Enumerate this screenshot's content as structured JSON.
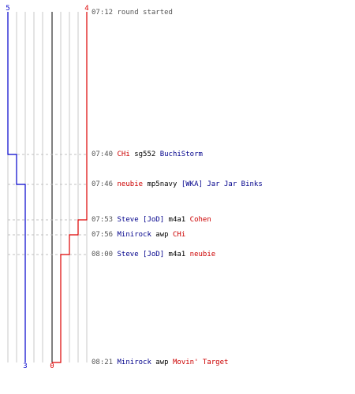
{
  "timeline": {
    "start_time": "07:12",
    "start_message": "round started",
    "team_blue": {
      "color": "#0000cc",
      "start_count": "5",
      "end_count": "3"
    },
    "team_red": {
      "color": "#dd0000",
      "start_count": "4",
      "end_count": "0"
    },
    "events": [
      {
        "time": "07:40",
        "killer": "CHi",
        "killer_team": "red",
        "weapon": "sg552",
        "victim": "BuchiStorm",
        "victim_team": "blue"
      },
      {
        "time": "07:46",
        "killer": "neubie",
        "killer_team": "red",
        "weapon": "mp5navy",
        "victim": "[WKA] Jar Jar Binks",
        "victim_team": "blue"
      },
      {
        "time": "07:53",
        "killer": "Steve [JoD]",
        "killer_team": "blue",
        "weapon": "m4a1",
        "victim": "Cohen",
        "victim_team": "red"
      },
      {
        "time": "07:56",
        "killer": "Minirock",
        "killer_team": "blue",
        "weapon": "awp",
        "victim": "CHi",
        "victim_team": "red"
      },
      {
        "time": "08:00",
        "killer": "Steve [JoD]",
        "killer_team": "blue",
        "weapon": "m4a1",
        "victim": "neubie",
        "victim_team": "red"
      },
      {
        "time": "08:21",
        "killer": "Minirock",
        "killer_team": "blue",
        "weapon": "awp",
        "victim": "Movin' Target",
        "victim_team": "red"
      }
    ]
  }
}
